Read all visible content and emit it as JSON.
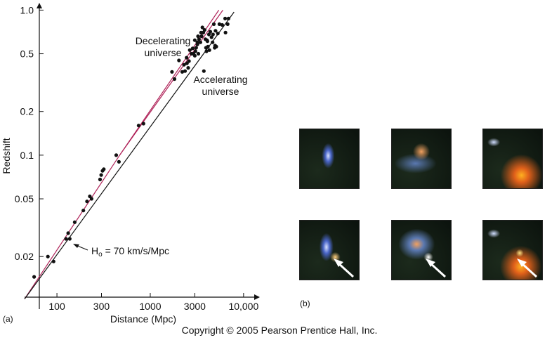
{
  "chart_data": {
    "type": "scatter",
    "xlabel": "Distance (Mpc)",
    "ylabel": "Redshift",
    "xscale": "log",
    "yscale": "log",
    "xlim": [
      45,
      13000
    ],
    "ylim": [
      0.0105,
      1.05
    ],
    "xticks": [
      100,
      300,
      1000,
      3000,
      10000
    ],
    "xtick_labels": [
      "100",
      "300",
      "1000",
      "3000",
      "10,000"
    ],
    "yticks": [
      0.02,
      0.05,
      0.1,
      0.2,
      0.5,
      1.0
    ],
    "ytick_labels": [
      "0.02",
      "0.05",
      "0.1",
      "0.2",
      "0.5",
      "1.0"
    ],
    "points": [
      [
        57,
        0.0145
      ],
      [
        80,
        0.02
      ],
      [
        92,
        0.0185
      ],
      [
        125,
        0.0265
      ],
      [
        132,
        0.029
      ],
      [
        137,
        0.0265
      ],
      [
        155,
        0.0345
      ],
      [
        192,
        0.0415
      ],
      [
        210,
        0.048
      ],
      [
        225,
        0.052
      ],
      [
        235,
        0.05
      ],
      [
        290,
        0.068
      ],
      [
        298,
        0.073
      ],
      [
        308,
        0.078
      ],
      [
        318,
        0.08
      ],
      [
        432,
        0.1
      ],
      [
        462,
        0.09
      ],
      [
        750,
        0.16
      ],
      [
        845,
        0.165
      ],
      [
        1710,
        0.375
      ],
      [
        1820,
        0.335
      ],
      [
        2030,
        0.45
      ],
      [
        2200,
        0.375
      ],
      [
        2300,
        0.42
      ],
      [
        2360,
        0.38
      ],
      [
        2450,
        0.47
      ],
      [
        2470,
        0.43
      ],
      [
        2550,
        0.4
      ],
      [
        2600,
        0.445
      ],
      [
        2650,
        0.53
      ],
      [
        2760,
        0.5
      ],
      [
        2900,
        0.5
      ],
      [
        3000,
        0.485
      ],
      [
        3050,
        0.52
      ],
      [
        3100,
        0.55
      ],
      [
        3200,
        0.58
      ],
      [
        3280,
        0.5
      ],
      [
        3330,
        0.63
      ],
      [
        3450,
        0.6
      ],
      [
        3550,
        0.66
      ],
      [
        3700,
        0.7
      ],
      [
        3820,
        0.73
      ],
      [
        3900,
        0.63
      ],
      [
        3950,
        0.55
      ],
      [
        4000,
        0.52
      ],
      [
        4050,
        0.62
      ],
      [
        4100,
        0.61
      ],
      [
        4150,
        0.56
      ],
      [
        4250,
        0.68
      ],
      [
        4300,
        0.53
      ],
      [
        4400,
        0.71
      ],
      [
        4530,
        0.65
      ],
      [
        4650,
        0.6
      ],
      [
        4700,
        0.68
      ],
      [
        4950,
        0.57
      ],
      [
        5100,
        0.56
      ],
      [
        5300,
        0.69
      ],
      [
        5000,
        0.72
      ],
      [
        3500,
        0.7
      ],
      [
        3250,
        0.66
      ],
      [
        3620,
        0.76
      ],
      [
        3200,
        0.6
      ],
      [
        2850,
        0.545
      ],
      [
        3750,
        0.38
      ],
      [
        3000,
        0.62
      ],
      [
        5500,
        0.8
      ],
      [
        5900,
        0.79
      ],
      [
        6350,
        0.875
      ],
      [
        6900,
        0.875
      ],
      [
        6750,
        0.8
      ],
      [
        6400,
        0.7
      ],
      [
        4800,
        0.8
      ],
      [
        4900,
        0.55
      ]
    ],
    "fits": [
      {
        "name": "Decelerating universe",
        "x": [
          45,
          470,
          5430
        ],
        "y": [
          0.0102,
          0.1,
          1.0
        ]
      },
      {
        "name": "",
        "x": [
          470,
          6000
        ],
        "y": [
          0.1,
          1.0
        ]
      },
      {
        "name": "Accelerating universe",
        "x": [
          45,
          7900
        ],
        "y": [
          0.0102,
          0.97
        ]
      }
    ],
    "annotations": [
      "Decelerating universe",
      "Accelerating universe"
    ],
    "hubble_label": {
      "prefix": "H",
      "sub": "o",
      "suffix": " = 70 km/s/Mpc"
    },
    "grid": false,
    "legend": "none"
  },
  "labels": {
    "panel_a": "(a)",
    "panel_b": "(b)",
    "decel_line1": "Decelerating",
    "decel_line2": "universe",
    "accel_line1": "Accelerating",
    "accel_line2": "universe"
  },
  "images": [
    {
      "name": "galaxy-before-1",
      "colors": [
        "#d8e2ff",
        "#4a66c8"
      ]
    },
    {
      "name": "galaxy-before-2",
      "colors": [
        "#f0a060",
        "#5a78b0"
      ]
    },
    {
      "name": "galaxy-before-3",
      "colors": [
        "#ffb020",
        "#d0ddff"
      ]
    },
    {
      "name": "galaxy-after-1",
      "colors": [
        "#d8e2ff",
        "#ffcf80"
      ]
    },
    {
      "name": "galaxy-after-2",
      "colors": [
        "#f0a060",
        "#ffffff"
      ]
    },
    {
      "name": "galaxy-after-3",
      "colors": [
        "#ffb020",
        "#ffe080"
      ]
    }
  ],
  "copyright": "Copyright © 2005 Pearson Prentice Hall, Inc."
}
